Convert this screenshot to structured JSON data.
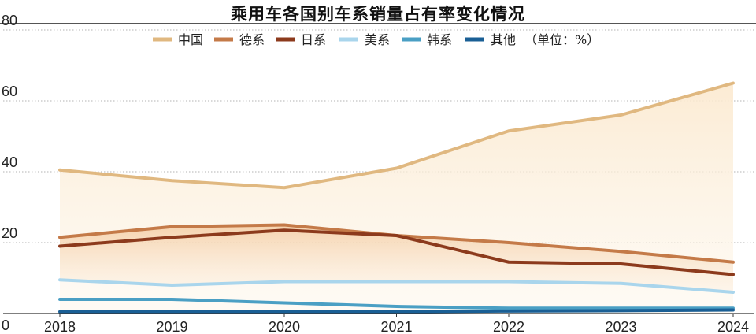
{
  "chart_data": {
    "type": "line",
    "title": "乘用车各国别车系销量占有率变化情况",
    "unit_note": "（单位：%）",
    "x": [
      "2018",
      "2019",
      "2020",
      "2021",
      "2022",
      "2023",
      "2024"
    ],
    "y_ticks": [
      "0",
      "20",
      "40",
      "60",
      "80"
    ],
    "ylim": [
      0,
      80
    ],
    "grid": "dotted horizontal",
    "legend_position": "top",
    "series": [
      {
        "name": "中国",
        "color": "#e0b880",
        "values": [
          40.5,
          37.5,
          35.5,
          41,
          51.5,
          56,
          65
        ]
      },
      {
        "name": "德系",
        "color": "#c47a48",
        "values": [
          21.5,
          24.5,
          25,
          22,
          20,
          17.5,
          14.5
        ]
      },
      {
        "name": "日系",
        "color": "#8c3a1c",
        "values": [
          19,
          21.5,
          23.5,
          22,
          14.5,
          14,
          11
        ]
      },
      {
        "name": "美系",
        "color": "#a9d5ec",
        "values": [
          9.5,
          8,
          9,
          9,
          9,
          8.5,
          6
        ]
      },
      {
        "name": "韩系",
        "color": "#4a9fc4",
        "values": [
          4,
          4,
          3,
          2,
          1.5,
          1.5,
          1.5
        ]
      },
      {
        "name": "其他",
        "color": "#1a5f95",
        "values": [
          0.5,
          0.5,
          0.5,
          0.5,
          0.7,
          0.8,
          1
        ]
      }
    ]
  }
}
